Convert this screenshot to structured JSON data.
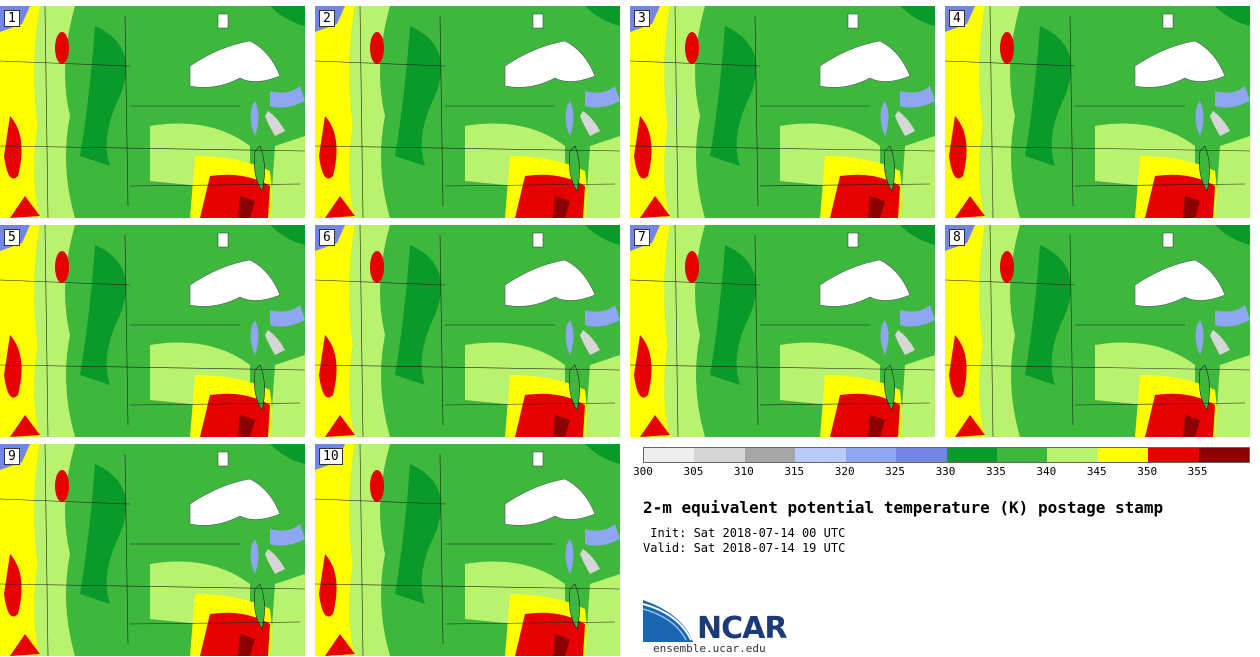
{
  "stamps": [
    {
      "label": "1"
    },
    {
      "label": "2"
    },
    {
      "label": "3"
    },
    {
      "label": "4"
    },
    {
      "label": "5"
    },
    {
      "label": "6"
    },
    {
      "label": "7"
    },
    {
      "label": "8"
    },
    {
      "label": "9"
    },
    {
      "label": "10"
    }
  ],
  "colorbar": {
    "colors": [
      "#eeeeee",
      "#d6d6d6",
      "#a6a6a6",
      "#b8ccff",
      "#8fa6f2",
      "#7386e6",
      "#0a9a2a",
      "#3db83d",
      "#b8f26e",
      "#ffff00",
      "#e60000",
      "#8b0000"
    ],
    "ticks": [
      "300",
      "305",
      "310",
      "315",
      "320",
      "325",
      "330",
      "335",
      "340",
      "345",
      "350",
      "355"
    ]
  },
  "title": "2-m equivalent potential temperature (K) postage stamp",
  "init": " Init: Sat 2018-07-14 00 UTC",
  "valid": "Valid: Sat 2018-07-14 19 UTC",
  "logo": {
    "name": "NCAR",
    "site": "ensemble.ucar.edu"
  }
}
